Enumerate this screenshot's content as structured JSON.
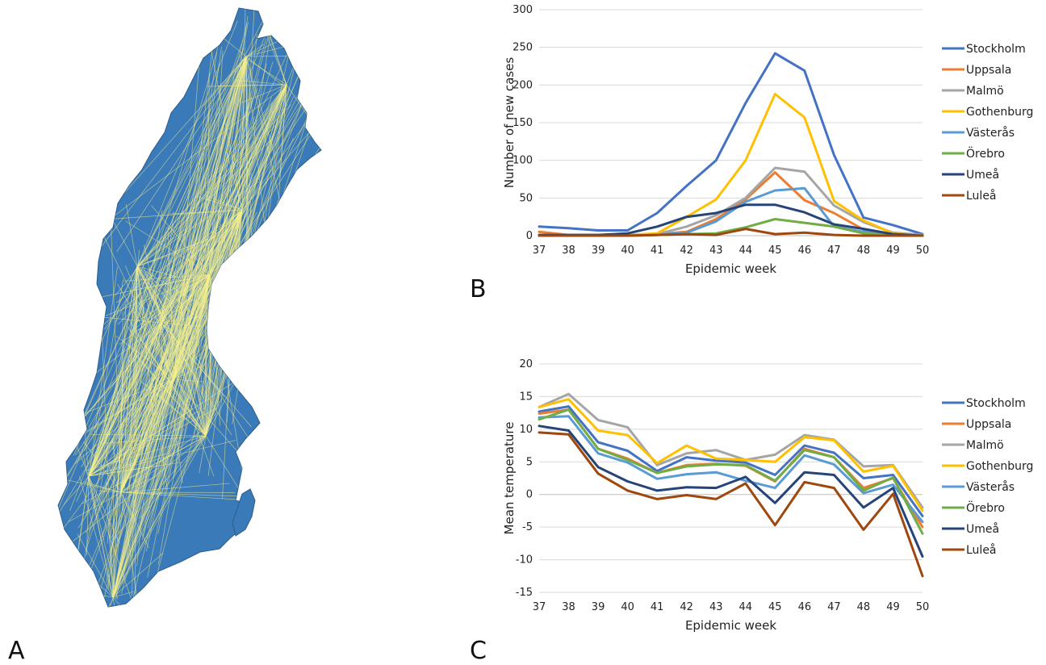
{
  "panels": {
    "a": {
      "letter": "A",
      "map_colors": {
        "land": "#3a7ab8",
        "flows": "#f6ee8c"
      }
    },
    "b": {
      "letter": "B"
    },
    "c": {
      "letter": "C"
    }
  },
  "chart_data": [
    {
      "type": "line",
      "xlabel": "Epidemic week",
      "ylabel": "Number of new cases",
      "x": [
        "37",
        "38",
        "39",
        "40",
        "41",
        "42",
        "43",
        "44",
        "45",
        "46",
        "47",
        "48",
        "49",
        "50"
      ],
      "ylim": [
        0,
        300
      ],
      "yticks": [
        0,
        50,
        100,
        150,
        200,
        250,
        300
      ],
      "grid": true,
      "legend": "right",
      "series": [
        {
          "name": "Stockholm",
          "color": "#4472c4",
          "values": [
            12,
            10,
            7,
            7,
            30,
            66,
            100,
            176,
            242,
            219,
            107,
            24,
            14,
            2
          ]
        },
        {
          "name": "Uppsala",
          "color": "#ed7d31",
          "values": [
            5,
            1,
            0,
            1,
            2,
            5,
            22,
            48,
            84,
            47,
            30,
            8,
            2,
            0
          ]
        },
        {
          "name": "Malmö",
          "color": "#a5a5a5",
          "values": [
            0,
            0,
            0,
            1,
            2,
            12,
            27,
            50,
            90,
            85,
            40,
            18,
            4,
            1
          ]
        },
        {
          "name": "Gothenburg",
          "color": "#ffc000",
          "values": [
            1,
            1,
            1,
            1,
            3,
            25,
            48,
            100,
            188,
            157,
            46,
            20,
            3,
            0
          ]
        },
        {
          "name": "Västerås",
          "color": "#5b9bd5",
          "values": [
            0,
            0,
            0,
            0,
            1,
            4,
            19,
            45,
            60,
            63,
            12,
            5,
            2,
            0
          ]
        },
        {
          "name": "Örebro",
          "color": "#70ad47",
          "values": [
            0,
            0,
            0,
            0,
            1,
            2,
            3,
            11,
            22,
            17,
            12,
            3,
            1,
            0
          ]
        },
        {
          "name": "Umeå",
          "color": "#264478",
          "values": [
            1,
            1,
            1,
            3,
            12,
            25,
            30,
            41,
            41,
            31,
            15,
            9,
            2,
            0
          ]
        },
        {
          "name": "Luleå",
          "color": "#9e480e",
          "values": [
            0,
            0,
            0,
            0,
            1,
            2,
            1,
            9,
            2,
            4,
            1,
            0,
            0,
            0
          ]
        }
      ]
    },
    {
      "type": "line",
      "xlabel": "Epidemic week",
      "ylabel": "Mean temperature",
      "x": [
        "37",
        "38",
        "39",
        "40",
        "41",
        "42",
        "43",
        "44",
        "45",
        "46",
        "47",
        "48",
        "49",
        "50"
      ],
      "ylim": [
        -15,
        20
      ],
      "yticks": [
        -15,
        -10,
        -5,
        0,
        5,
        10,
        15,
        20
      ],
      "grid": true,
      "legend": "right",
      "series": [
        {
          "name": "Stockholm",
          "color": "#4472c4",
          "values": [
            12.7,
            13.5,
            8.0,
            6.7,
            3.6,
            5.7,
            5.2,
            4.9,
            3.0,
            7.5,
            6.4,
            2.5,
            3.0,
            -3.3
          ]
        },
        {
          "name": "Uppsala",
          "color": "#ed7d31",
          "values": [
            12.4,
            13.0,
            7.0,
            5.5,
            3.3,
            4.5,
            4.7,
            4.4,
            2.0,
            7.0,
            5.7,
            1.0,
            2.5,
            -5.0
          ]
        },
        {
          "name": "Malmö",
          "color": "#a5a5a5",
          "values": [
            13.4,
            15.4,
            11.4,
            10.3,
            4.5,
            6.3,
            6.8,
            5.3,
            6.1,
            9.1,
            8.4,
            4.3,
            4.5,
            -2.0
          ]
        },
        {
          "name": "Gothenburg",
          "color": "#ffc000",
          "values": [
            13.4,
            14.6,
            9.8,
            9.1,
            4.8,
            7.5,
            5.5,
            5.3,
            5.0,
            8.8,
            8.3,
            3.5,
            4.4,
            -2.5
          ]
        },
        {
          "name": "Västerås",
          "color": "#5b9bd5",
          "values": [
            11.8,
            12.0,
            6.3,
            4.9,
            2.4,
            3.1,
            3.4,
            2.1,
            1.0,
            6.0,
            4.6,
            0.2,
            1.5,
            -4.2
          ]
        },
        {
          "name": "Örebro",
          "color": "#70ad47",
          "values": [
            11.5,
            13.0,
            7.0,
            5.3,
            3.3,
            4.3,
            4.6,
            4.5,
            2.1,
            6.8,
            5.7,
            0.6,
            2.6,
            -6.0
          ]
        },
        {
          "name": "Umeå",
          "color": "#264478",
          "values": [
            10.5,
            9.8,
            4.2,
            2.0,
            0.6,
            1.1,
            1.0,
            2.7,
            -1.3,
            3.4,
            3.0,
            -2.0,
            1.0,
            -9.5
          ]
        },
        {
          "name": "Luleå",
          "color": "#9e480e",
          "values": [
            9.5,
            9.2,
            3.2,
            0.6,
            -0.7,
            -0.1,
            -0.7,
            1.7,
            -4.7,
            1.9,
            1.0,
            -5.4,
            0.1,
            -12.5
          ]
        }
      ]
    }
  ]
}
